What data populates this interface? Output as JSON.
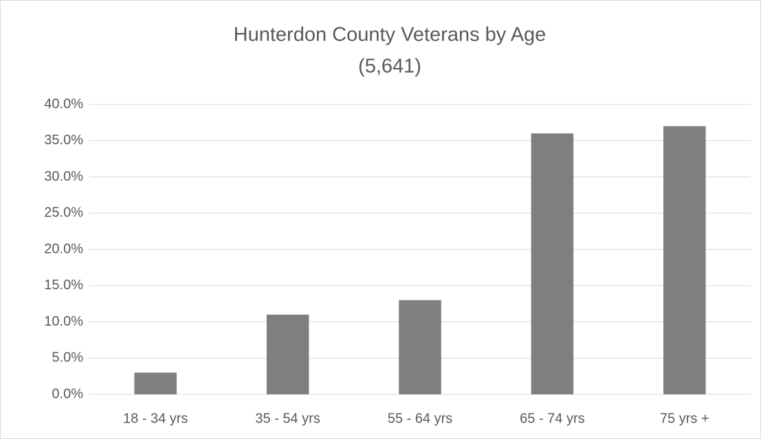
{
  "chart_data": {
    "type": "bar",
    "title": "Hunterdon County Veterans by Age",
    "subtitle": "(5,641)",
    "categories": [
      "18 - 34 yrs",
      "35 - 54 yrs",
      "55 - 64 yrs",
      "65 - 74 yrs",
      "75 yrs +"
    ],
    "values": [
      3,
      11,
      13,
      36,
      37
    ],
    "color": "#7f7f7f",
    "ylim": [
      0,
      40
    ],
    "yticks": [
      {
        "value": 0,
        "label": "0.0%"
      },
      {
        "value": 5,
        "label": "5.0%"
      },
      {
        "value": 10,
        "label": "10.0%"
      },
      {
        "value": 15,
        "label": "15.0%"
      },
      {
        "value": 20,
        "label": "20.0%"
      },
      {
        "value": 25,
        "label": "25.0%"
      },
      {
        "value": 30,
        "label": "30.0%"
      },
      {
        "value": 35,
        "label": "35.0%"
      },
      {
        "value": 40,
        "label": "40.0%"
      }
    ],
    "grid": true
  }
}
